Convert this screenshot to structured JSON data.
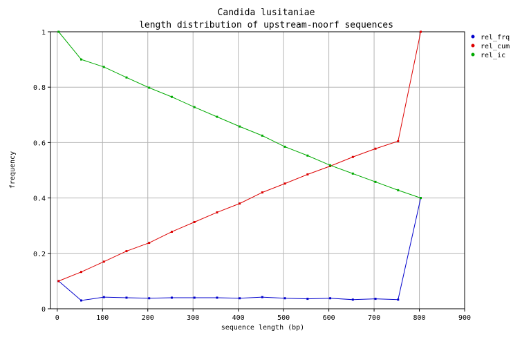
{
  "chart_data": {
    "type": "line",
    "title": "Candida lusitaniae",
    "subtitle": "length distribution of upstream-noorf sequences",
    "xlabel": "sequence length (bp)",
    "ylabel": "frequency",
    "xlim": [
      -15,
      900
    ],
    "ylim": [
      0,
      1
    ],
    "xticks": [
      0,
      100,
      200,
      300,
      400,
      500,
      600,
      700,
      800,
      900
    ],
    "yticks": [
      0,
      0.2,
      0.4,
      0.6,
      0.8,
      1
    ],
    "ytick_labels": [
      "0",
      "0.2",
      "0.4",
      "0.6",
      "0.8",
      "1"
    ],
    "grid": true,
    "legend_position": "top-right",
    "x": [
      3,
      53,
      103,
      153,
      203,
      253,
      303,
      353,
      403,
      453,
      503,
      553,
      603,
      653,
      703,
      753,
      803
    ],
    "series": [
      {
        "name": "rel_frq",
        "color": "#0000cc",
        "values": [
          0.1,
          0.03,
          0.042,
          0.04,
          0.038,
          0.04,
          0.04,
          0.04,
          0.038,
          0.042,
          0.038,
          0.036,
          0.038,
          0.033,
          0.036,
          0.033,
          0.4
        ]
      },
      {
        "name": "rel_cum",
        "color": "#dd0000",
        "values": [
          0.1,
          0.133,
          0.17,
          0.208,
          0.238,
          0.278,
          0.313,
          0.348,
          0.38,
          0.42,
          0.452,
          0.485,
          0.515,
          0.548,
          0.578,
          0.605,
          1.0
        ]
      },
      {
        "name": "rel_ic",
        "color": "#00aa00",
        "values": [
          1.0,
          0.9,
          0.873,
          0.835,
          0.798,
          0.765,
          0.728,
          0.693,
          0.658,
          0.625,
          0.585,
          0.553,
          0.518,
          0.488,
          0.458,
          0.428,
          0.4
        ]
      }
    ]
  }
}
